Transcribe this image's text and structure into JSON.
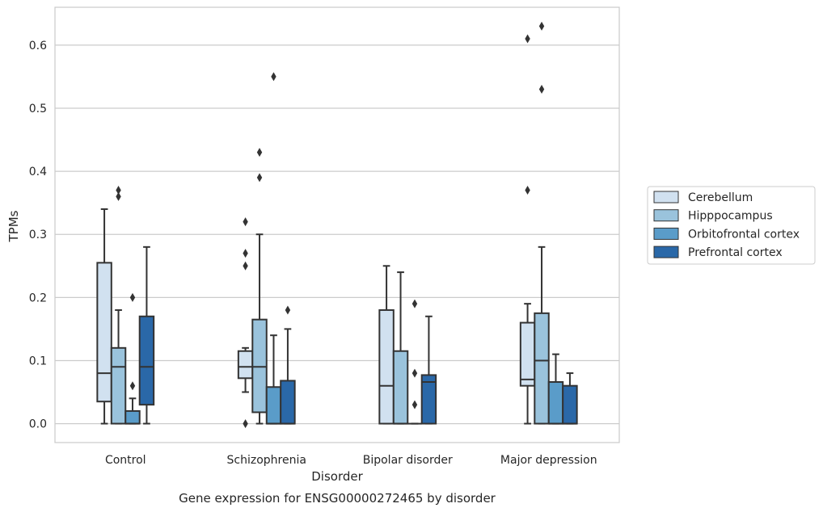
{
  "chart_data": {
    "type": "box",
    "title": "",
    "caption": "Gene expression for ENSG00000272465 by disorder",
    "xlabel": "Disorder",
    "ylabel": "TPMs",
    "ylim": [
      -0.03,
      0.66
    ],
    "yticks": [
      0.0,
      0.1,
      0.2,
      0.3,
      0.4,
      0.5,
      0.6
    ],
    "ytick_labels": [
      "0.0",
      "0.1",
      "0.2",
      "0.3",
      "0.4",
      "0.5",
      "0.6"
    ],
    "grid": "horizontal",
    "legend_position": "right",
    "categories": [
      "Control",
      "Schizophrenia",
      "Bipolar disorder",
      "Major depression"
    ],
    "series": [
      {
        "name": "Cerebellum",
        "color": "#d1e1f0",
        "boxes": [
          {
            "whislo": 0.0,
            "q1": 0.035,
            "med": 0.08,
            "q3": 0.255,
            "whishi": 0.34,
            "fliers": []
          },
          {
            "whislo": 0.05,
            "q1": 0.072,
            "med": 0.09,
            "q3": 0.115,
            "whishi": 0.12,
            "fliers": [
              0.0,
              0.25,
              0.27,
              0.32
            ]
          },
          {
            "whislo": 0.0,
            "q1": 0.0,
            "med": 0.06,
            "q3": 0.18,
            "whishi": 0.25,
            "fliers": []
          },
          {
            "whislo": 0.0,
            "q1": 0.06,
            "med": 0.07,
            "q3": 0.16,
            "whishi": 0.19,
            "fliers": [
              0.37,
              0.61
            ]
          }
        ]
      },
      {
        "name": "Hipppocampus",
        "color": "#9ac3dc",
        "boxes": [
          {
            "whislo": 0.0,
            "q1": 0.0,
            "med": 0.09,
            "q3": 0.12,
            "whishi": 0.18,
            "fliers": [
              0.36,
              0.37
            ]
          },
          {
            "whislo": 0.0,
            "q1": 0.018,
            "med": 0.09,
            "q3": 0.165,
            "whishi": 0.3,
            "fliers": [
              0.39,
              0.43
            ]
          },
          {
            "whislo": 0.0,
            "q1": 0.0,
            "med": 0.0,
            "q3": 0.115,
            "whishi": 0.24,
            "fliers": []
          },
          {
            "whislo": 0.0,
            "q1": 0.0,
            "med": 0.1,
            "q3": 0.175,
            "whishi": 0.28,
            "fliers": [
              0.53,
              0.63
            ]
          }
        ]
      },
      {
        "name": "Orbitofrontal cortex",
        "color": "#5a9cc9",
        "boxes": [
          {
            "whislo": 0.0,
            "q1": 0.0,
            "med": 0.0,
            "q3": 0.02,
            "whishi": 0.04,
            "fliers": [
              0.06,
              0.2
            ]
          },
          {
            "whislo": 0.0,
            "q1": 0.0,
            "med": 0.0,
            "q3": 0.058,
            "whishi": 0.14,
            "fliers": [
              0.55
            ]
          },
          {
            "whislo": 0.0,
            "q1": 0.0,
            "med": 0.0,
            "q3": 0.0,
            "whishi": 0.0,
            "fliers": [
              0.03,
              0.08,
              0.19
            ]
          },
          {
            "whislo": 0.0,
            "q1": 0.0,
            "med": 0.0,
            "q3": 0.066,
            "whishi": 0.11,
            "fliers": []
          }
        ]
      },
      {
        "name": "Prefrontal cortex",
        "color": "#2a68a8",
        "boxes": [
          {
            "whislo": 0.0,
            "q1": 0.03,
            "med": 0.09,
            "q3": 0.17,
            "whishi": 0.28,
            "fliers": []
          },
          {
            "whislo": 0.0,
            "q1": 0.0,
            "med": 0.0,
            "q3": 0.068,
            "whishi": 0.15,
            "fliers": [
              0.18
            ]
          },
          {
            "whislo": 0.0,
            "q1": 0.0,
            "med": 0.066,
            "q3": 0.077,
            "whishi": 0.17,
            "fliers": []
          },
          {
            "whislo": 0.0,
            "q1": 0.0,
            "med": 0.0,
            "q3": 0.06,
            "whishi": 0.08,
            "fliers": []
          }
        ]
      }
    ]
  }
}
